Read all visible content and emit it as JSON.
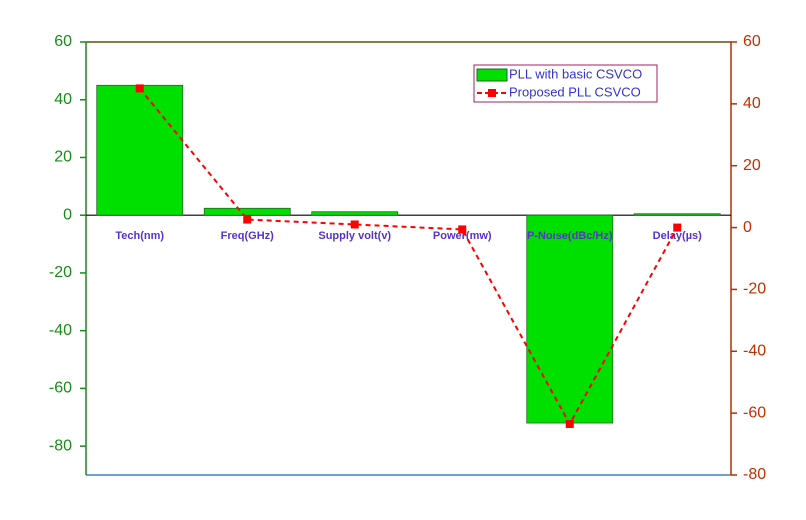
{
  "chart_data": {
    "type": "bar-line",
    "categories": [
      "Tech(nm)",
      "Freq(GHz)",
      "Supply volt(v)",
      "Power(mw)",
      "P-Noise(dBc/Hz)",
      "Delay(µs)"
    ],
    "series": [
      {
        "name": "PLL with basic CSVCO",
        "type": "bar",
        "color": "#00e000",
        "axis": "y",
        "values": [
          45,
          2.4,
          1.2,
          0,
          -72,
          0.5
        ]
      },
      {
        "name": "Proposed PLL CSVCO",
        "type": "line",
        "color": "#ff0000",
        "axis": "y2",
        "values": [
          45,
          2.6,
          1,
          -0.6,
          -63.5,
          0
        ]
      }
    ],
    "ylim": [
      -90,
      60
    ],
    "yticks": [
      -80,
      -60,
      -40,
      -20,
      0,
      20,
      40,
      60
    ],
    "y2lim": [
      -80,
      60
    ],
    "y2ticks": [
      -80,
      -60,
      -40,
      -20,
      0,
      20,
      40,
      60
    ],
    "legend": "top-right"
  }
}
